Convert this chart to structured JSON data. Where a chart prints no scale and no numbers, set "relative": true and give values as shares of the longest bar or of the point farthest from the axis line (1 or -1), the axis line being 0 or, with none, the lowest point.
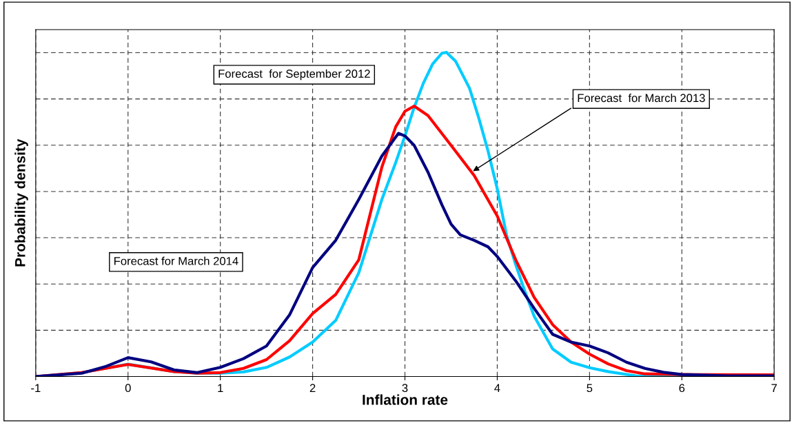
{
  "chart_data": {
    "type": "line",
    "relative": true,
    "xlabel": "Inflation rate",
    "ylabel": "Probability density",
    "xlim": [
      -1,
      7
    ],
    "xticks": [
      -1,
      0,
      1,
      2,
      3,
      4,
      5,
      6,
      7
    ],
    "grid": true,
    "line_style": "solid",
    "tick_labels": "x",
    "series": [
      {
        "color": "#00ccff",
        "x": [
          -1,
          -0.5,
          0,
          0.5,
          0.75,
          1,
          1.25,
          1.5,
          1.75,
          2,
          2.25,
          2.5,
          2.75,
          2.9,
          3.0,
          3.1,
          3.2,
          3.3,
          3.4,
          3.45,
          3.55,
          3.7,
          3.8,
          3.9,
          4.0,
          4.1,
          4.2,
          4.3,
          4.4,
          4.6,
          4.8,
          5.0,
          5.2,
          5.5,
          6,
          7
        ],
        "values": [
          0,
          0.012,
          0.038,
          0.015,
          0.01,
          0.01,
          0.014,
          0.028,
          0.06,
          0.106,
          0.173,
          0.32,
          0.546,
          0.66,
          0.742,
          0.83,
          0.905,
          0.964,
          0.997,
          1.0,
          0.972,
          0.889,
          0.797,
          0.696,
          0.579,
          0.437,
          0.345,
          0.262,
          0.186,
          0.085,
          0.044,
          0.027,
          0.015,
          0.002,
          0,
          0
        ]
      },
      {
        "color": "#ff0000",
        "x": [
          -1,
          -0.5,
          0,
          0.5,
          0.75,
          1,
          1.25,
          1.5,
          1.75,
          2,
          2.25,
          2.5,
          2.75,
          2.9,
          3.0,
          3.1,
          3.25,
          3.5,
          3.75,
          4.0,
          4.2,
          4.4,
          4.6,
          4.8,
          5.0,
          5.2,
          5.4,
          5.6,
          6,
          7
        ],
        "values": [
          0,
          0.012,
          0.037,
          0.015,
          0.01,
          0.012,
          0.025,
          0.052,
          0.11,
          0.194,
          0.253,
          0.36,
          0.646,
          0.77,
          0.818,
          0.834,
          0.805,
          0.713,
          0.62,
          0.495,
          0.36,
          0.244,
          0.16,
          0.106,
          0.069,
          0.039,
          0.018,
          0.008,
          0.006,
          0.005
        ]
      },
      {
        "color": "#000080",
        "x": [
          -1,
          -0.5,
          -0.25,
          0,
          0.25,
          0.5,
          0.75,
          1,
          1.25,
          1.5,
          1.75,
          2,
          2.25,
          2.5,
          2.75,
          2.93,
          3.0,
          3.1,
          3.25,
          3.4,
          3.5,
          3.6,
          3.75,
          3.9,
          4.0,
          4.2,
          4.4,
          4.6,
          4.8,
          5.0,
          5.2,
          5.4,
          5.6,
          5.8,
          6.0,
          6.5,
          7
        ],
        "values": [
          0,
          0.01,
          0.03,
          0.058,
          0.045,
          0.02,
          0.012,
          0.028,
          0.055,
          0.094,
          0.19,
          0.336,
          0.42,
          0.546,
          0.68,
          0.75,
          0.742,
          0.713,
          0.63,
          0.53,
          0.47,
          0.437,
          0.42,
          0.4,
          0.37,
          0.295,
          0.21,
          0.13,
          0.106,
          0.094,
          0.073,
          0.044,
          0.025,
          0.013,
          0.006,
          0.002,
          0.002
        ]
      }
    ],
    "annotations": [
      "Forecast  for September 2012",
      {
        "text": "Forecast  for March 2013",
        "x": 3.72,
        "y": 0.63
      },
      "Forecast for March 2014"
    ]
  }
}
